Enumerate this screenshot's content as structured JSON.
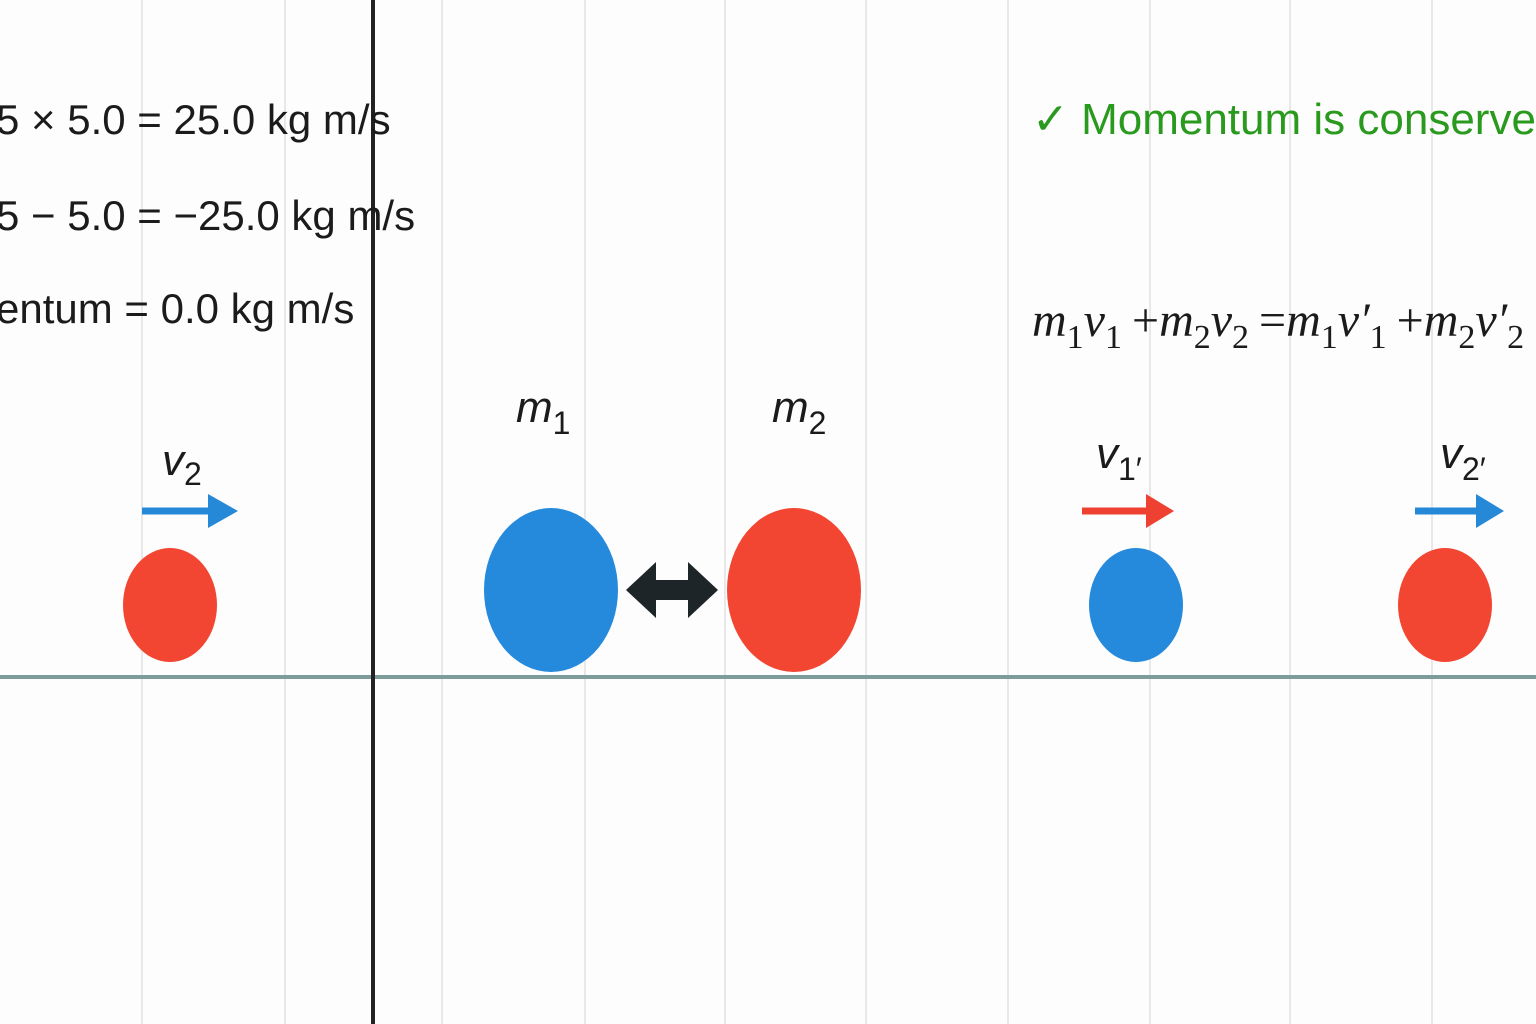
{
  "readouts": [
    "5 × 5.0 = 25.0 kg m/s",
    "5 − 5.0 = −25.0 kg m/s",
    "entum = 0.0 kg m/s"
  ],
  "status": "✓ Momentum is conserved",
  "equation": [
    {
      "base": "m",
      "sub": "1"
    },
    {
      "base": "v",
      "sub": "1"
    },
    {
      "op": "+"
    },
    {
      "base": "m",
      "sub": "2"
    },
    {
      "base": "v",
      "sub": "2"
    },
    {
      "op": "="
    },
    {
      "base": "m",
      "sub": "1"
    },
    {
      "base": "v′",
      "sub": "1"
    },
    {
      "op": "+"
    },
    {
      "base": "m",
      "sub": "2"
    },
    {
      "base": "v′",
      "sub": "2"
    }
  ],
  "labels": {
    "v2": {
      "base": "v",
      "sub": "2"
    },
    "m1": {
      "base": "m",
      "sub": "1"
    },
    "m2": {
      "base": "m",
      "sub": "2"
    },
    "v1_after": {
      "base": "v",
      "sub": "1′"
    },
    "v2_after": {
      "base": "v",
      "sub": "2′"
    }
  }
}
